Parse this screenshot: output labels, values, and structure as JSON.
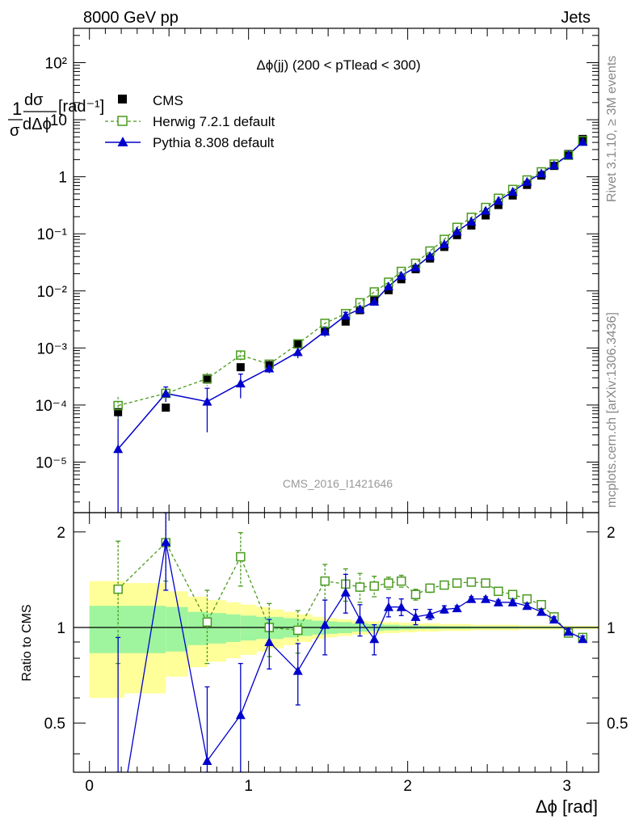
{
  "header": {
    "left": "8000 GeV pp",
    "right": "Jets"
  },
  "side_labels": {
    "rivet": "Rivet 3.1.10, ≥ 3M events",
    "mcplots": "mcplots.cern.ch [arXiv:1306.3436]"
  },
  "chart_data": {
    "type": "scatter",
    "title": "Δϕ(jj) (200 < pTlead <  300)",
    "watermark": "CMS_2016_I1421646",
    "xlabel": "Δϕ [rad]",
    "ylabel": "1/σ dσ/dΔϕ [rad⁻¹]",
    "ratio_ylabel": "Ratio to CMS",
    "xlim": [
      -0.1,
      3.2
    ],
    "ylim": [
      1.3e-06,
      400
    ],
    "yscale": "log",
    "ratio_ylim": [
      0.35,
      2.3
    ],
    "ratio_yscale": "log",
    "x_ticks": [
      "0",
      "1",
      "2",
      "3"
    ],
    "y_ticks": [
      "10⁻⁵",
      "10⁻⁴",
      "10⁻³",
      "10⁻²",
      "10⁻¹",
      "1",
      "10",
      "10²"
    ],
    "ratio_ticks": [
      "0.5",
      "1",
      "2"
    ],
    "legend_position": "top-left",
    "x": [
      0.18,
      0.48,
      0.74,
      0.95,
      1.13,
      1.31,
      1.48,
      1.61,
      1.7,
      1.79,
      1.88,
      1.96,
      2.05,
      2.14,
      2.23,
      2.31,
      2.4,
      2.49,
      2.57,
      2.66,
      2.75,
      2.84,
      2.92,
      3.01,
      3.1
    ],
    "series": [
      {
        "name": "CMS",
        "style": "data",
        "color": "#000000",
        "values": [
          7.5e-05,
          9e-05,
          0.00028,
          0.00046,
          0.0005,
          0.0012,
          0.00195,
          0.0029,
          0.0046,
          0.007,
          0.0103,
          0.016,
          0.024,
          0.037,
          0.059,
          0.095,
          0.14,
          0.21,
          0.32,
          0.47,
          0.72,
          1.05,
          1.55,
          2.5,
          4.6
        ]
      },
      {
        "name": "Herwig 7.2.1 default",
        "style": "open-square-dashed",
        "color": "#4a9a1e",
        "values": [
          9.8e-05,
          0.00016,
          0.00029,
          0.00075,
          0.00052,
          0.00118,
          0.0027,
          0.004,
          0.0062,
          0.0096,
          0.0142,
          0.022,
          0.0305,
          0.05,
          0.08,
          0.13,
          0.195,
          0.29,
          0.42,
          0.6,
          0.88,
          1.22,
          1.67,
          2.38,
          4.3
        ],
        "ratio": [
          1.32,
          1.85,
          1.04,
          1.67,
          1.0,
          0.98,
          1.4,
          1.37,
          1.34,
          1.35,
          1.38,
          1.4,
          1.27,
          1.33,
          1.36,
          1.38,
          1.39,
          1.38,
          1.3,
          1.27,
          1.23,
          1.18,
          1.08,
          0.96,
          0.93
        ],
        "ratio_err": [
          0.55,
          0.45,
          0.27,
          0.32,
          0.19,
          0.15,
          0.18,
          0.16,
          0.14,
          0.1,
          0.06,
          0.06,
          0.05,
          0.04,
          0.03,
          0.02,
          0.02,
          0.02,
          0.02,
          0.02,
          0.02,
          0.02,
          0.02,
          0.02,
          0.02
        ]
      },
      {
        "name": "Pythia 8.308 default",
        "style": "filled-triangle-solid",
        "color": "#0000cc",
        "values": [
          1.7e-05,
          0.00016,
          0.000115,
          0.00024,
          0.00044,
          0.00085,
          0.00195,
          0.0037,
          0.0048,
          0.0065,
          0.012,
          0.0185,
          0.026,
          0.041,
          0.066,
          0.11,
          0.165,
          0.255,
          0.38,
          0.55,
          0.82,
          1.15,
          1.6,
          2.4,
          4.1
        ],
        "ratio": [
          0.23,
          1.86,
          0.38,
          0.53,
          0.9,
          0.73,
          1.02,
          1.29,
          1.06,
          0.92,
          1.16,
          1.16,
          1.08,
          1.1,
          1.14,
          1.15,
          1.23,
          1.23,
          1.2,
          1.2,
          1.17,
          1.12,
          1.06,
          0.97,
          0.92
        ],
        "ratio_err": [
          0.7,
          0.55,
          0.27,
          0.24,
          0.16,
          0.16,
          0.2,
          0.18,
          0.12,
          0.1,
          0.08,
          0.07,
          0.06,
          0.04,
          0.03,
          0.02,
          0.02,
          0.02,
          0.02,
          0.02,
          0.02,
          0.02,
          0.02,
          0.02,
          0.02
        ]
      }
    ],
    "uncertainty_band": {
      "edges": [
        0.0,
        0.22,
        0.48,
        0.62,
        0.74,
        0.86,
        0.95,
        1.05,
        1.13,
        1.22,
        1.31,
        1.4,
        1.48,
        1.56,
        1.65,
        1.75,
        1.85,
        1.95,
        2.05,
        2.2,
        2.4,
        2.7,
        3.0,
        3.2
      ],
      "inner": [
        0.17,
        0.17,
        0.16,
        0.12,
        0.11,
        0.1,
        0.09,
        0.08,
        0.08,
        0.07,
        0.06,
        0.05,
        0.045,
        0.04,
        0.03,
        0.025,
        0.02,
        0.015,
        0.012,
        0.01,
        0.008,
        0.006,
        0.005
      ],
      "outer": [
        0.4,
        0.38,
        0.3,
        0.25,
        0.22,
        0.2,
        0.18,
        0.16,
        0.14,
        0.12,
        0.1,
        0.08,
        0.07,
        0.06,
        0.05,
        0.045,
        0.04,
        0.035,
        0.03,
        0.025,
        0.02,
        0.015,
        0.012
      ],
      "inner_color": "#9ef59e",
      "outer_color": "#ffff99"
    }
  }
}
